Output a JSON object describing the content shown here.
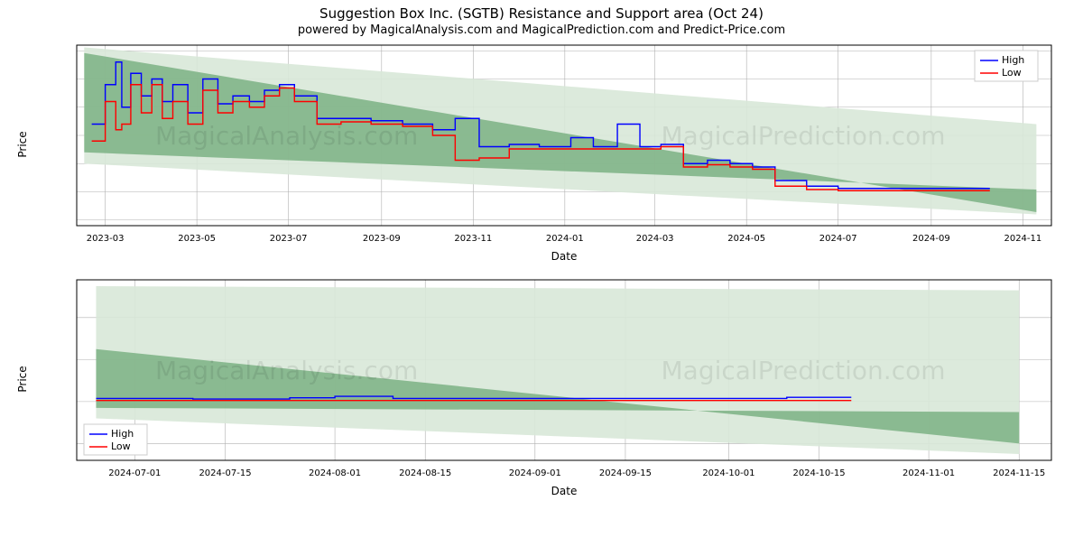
{
  "title": "Suggestion Box Inc. (SGTB) Resistance and Support area (Oct 24)",
  "subtitle": "powered by MagicalAnalysis.com and MagicalPrediction.com and Predict-Price.com",
  "watermark_left": "MagicalAnalysis.com",
  "watermark_right": "MagicalPrediction.com",
  "legend": {
    "high": "High",
    "low": "Low"
  },
  "colors": {
    "high_line": "#0000ff",
    "low_line": "#ff0000",
    "band_dark": "#6fa978",
    "band_light": "#d8e8d8",
    "grid": "#b0b0b0",
    "bg": "#ffffff"
  },
  "chart_top": {
    "type": "line+area",
    "xlabel": "Date",
    "ylabel": "Price",
    "ylim": [
      -0.003,
      0.013
    ],
    "yticks": [
      -0.0025,
      0.0,
      0.0025,
      0.005,
      0.0075,
      0.01,
      0.0125
    ],
    "xticks": [
      "2023-03",
      "2023-05",
      "2023-07",
      "2023-09",
      "2023-11",
      "2024-01",
      "2024-03",
      "2024-05",
      "2024-07",
      "2024-09",
      "2024-11"
    ],
    "x_domain": [
      "2023-02-10",
      "2024-11-20"
    ],
    "dark_band": {
      "x": [
        "2023-02-15",
        "2024-11-10",
        "2024-11-10",
        "2023-02-15"
      ],
      "y": [
        0.0123,
        -0.0018,
        0.0002,
        0.0035
      ]
    },
    "light_band": {
      "x": [
        "2023-02-15",
        "2024-11-10",
        "2024-11-10",
        "2023-02-15"
      ],
      "y": [
        0.0128,
        0.006,
        -0.002,
        0.0025
      ]
    },
    "high_series": {
      "x": [
        "2023-02-20",
        "2023-03-01",
        "2023-03-08",
        "2023-03-12",
        "2023-03-18",
        "2023-03-25",
        "2023-04-01",
        "2023-04-08",
        "2023-04-15",
        "2023-04-25",
        "2023-05-05",
        "2023-05-15",
        "2023-05-25",
        "2023-06-05",
        "2023-06-15",
        "2023-06-25",
        "2023-07-05",
        "2023-07-20",
        "2023-08-05",
        "2023-08-25",
        "2023-09-15",
        "2023-10-05",
        "2023-10-20",
        "2023-11-05",
        "2023-11-25",
        "2023-12-15",
        "2024-01-05",
        "2024-01-20",
        "2024-02-05",
        "2024-02-20",
        "2024-03-05",
        "2024-03-20",
        "2024-04-05",
        "2024-04-20",
        "2024-05-05",
        "2024-05-20",
        "2024-06-10",
        "2024-07-01",
        "2024-08-01",
        "2024-09-01",
        "2024-10-10"
      ],
      "y": [
        0.006,
        0.0095,
        0.0115,
        0.0075,
        0.0105,
        0.0085,
        0.01,
        0.008,
        0.0095,
        0.007,
        0.01,
        0.0078,
        0.0085,
        0.008,
        0.009,
        0.0095,
        0.0085,
        0.0065,
        0.0065,
        0.0063,
        0.006,
        0.0055,
        0.0065,
        0.004,
        0.0042,
        0.004,
        0.0048,
        0.004,
        0.006,
        0.004,
        0.0042,
        0.0025,
        0.0028,
        0.0025,
        0.0022,
        0.001,
        0.0005,
        0.0003,
        0.0003,
        0.0003,
        0.0003
      ]
    },
    "low_series": {
      "x": [
        "2023-02-20",
        "2023-03-01",
        "2023-03-08",
        "2023-03-12",
        "2023-03-18",
        "2023-03-25",
        "2023-04-01",
        "2023-04-08",
        "2023-04-15",
        "2023-04-25",
        "2023-05-05",
        "2023-05-15",
        "2023-05-25",
        "2023-06-05",
        "2023-06-15",
        "2023-06-25",
        "2023-07-05",
        "2023-07-20",
        "2023-08-05",
        "2023-08-25",
        "2023-09-15",
        "2023-10-05",
        "2023-10-20",
        "2023-11-05",
        "2023-11-25",
        "2023-12-15",
        "2024-01-05",
        "2024-01-20",
        "2024-02-05",
        "2024-02-20",
        "2024-03-05",
        "2024-03-20",
        "2024-04-05",
        "2024-04-20",
        "2024-05-05",
        "2024-05-20",
        "2024-06-10",
        "2024-07-01",
        "2024-08-01",
        "2024-09-01",
        "2024-10-10"
      ],
      "y": [
        0.0045,
        0.008,
        0.0055,
        0.006,
        0.0095,
        0.007,
        0.0095,
        0.0065,
        0.008,
        0.006,
        0.009,
        0.007,
        0.008,
        0.0075,
        0.0085,
        0.0092,
        0.008,
        0.006,
        0.0062,
        0.006,
        0.0058,
        0.005,
        0.0028,
        0.003,
        0.0038,
        0.0038,
        0.0038,
        0.0038,
        0.0038,
        0.0038,
        0.004,
        0.0022,
        0.0024,
        0.0022,
        0.002,
        0.0005,
        0.0002,
        0.0001,
        0.0001,
        0.0001,
        0.0001
      ]
    },
    "legend_pos": "top-right"
  },
  "chart_bot": {
    "type": "line+area",
    "xlabel": "Date",
    "ylabel": "Price",
    "ylim": [
      -0.0028,
      0.0058
    ],
    "yticks": [
      -0.002,
      0.0,
      0.002,
      0.004
    ],
    "xticks": [
      "2024-07-01",
      "2024-07-15",
      "2024-08-01",
      "2024-08-15",
      "2024-09-01",
      "2024-09-15",
      "2024-10-01",
      "2024-10-15",
      "2024-11-01",
      "2024-11-15"
    ],
    "x_domain": [
      "2024-06-22",
      "2024-11-20"
    ],
    "dark_band": {
      "x": [
        "2024-06-25",
        "2024-11-15",
        "2024-11-15",
        "2024-06-25"
      ],
      "y": [
        0.0025,
        -0.002,
        -0.0005,
        -0.0003
      ]
    },
    "light_band": {
      "x": [
        "2024-06-25",
        "2024-11-15",
        "2024-11-15",
        "2024-06-25"
      ],
      "y": [
        0.0055,
        0.0053,
        -0.0025,
        -0.0008
      ]
    },
    "high_series": {
      "x": [
        "2024-06-25",
        "2024-07-10",
        "2024-07-25",
        "2024-08-01",
        "2024-08-10",
        "2024-08-25",
        "2024-09-10",
        "2024-09-25",
        "2024-10-10",
        "2024-10-20"
      ],
      "y": [
        0.00015,
        0.00012,
        0.00018,
        0.00025,
        0.00015,
        0.00015,
        0.00015,
        0.00015,
        0.0002,
        0.0002
      ]
    },
    "low_series": {
      "x": [
        "2024-06-25",
        "2024-07-10",
        "2024-07-25",
        "2024-08-01",
        "2024-08-10",
        "2024-08-25",
        "2024-09-10",
        "2024-09-25",
        "2024-10-10",
        "2024-10-20"
      ],
      "y": [
        5e-05,
        5e-05,
        5e-05,
        5e-05,
        5e-05,
        5e-05,
        5e-05,
        5e-05,
        5e-05,
        5e-05
      ]
    },
    "legend_pos": "bottom-left"
  }
}
